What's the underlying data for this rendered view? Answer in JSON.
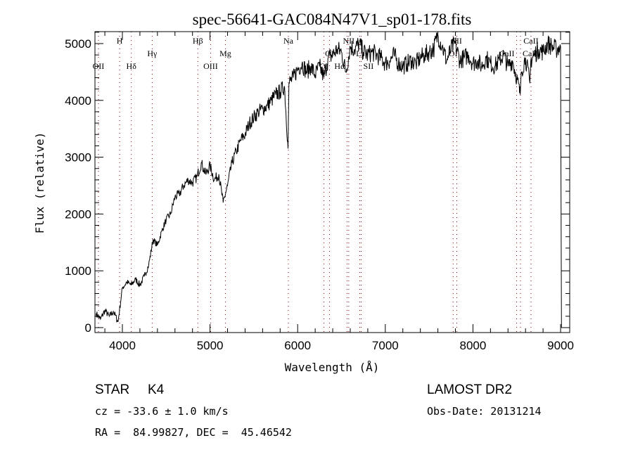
{
  "chart_data": {
    "type": "line",
    "title": "spec-56641-GAC084N47V1_sp01-178.fits",
    "xlabel": "Wavelength (Å)",
    "ylabel": "Flux (relative)",
    "xlim": [
      3687,
      9104
    ],
    "ylim": [
      -87,
      5210
    ],
    "xticks": [
      4000,
      5000,
      6000,
      7000,
      8000,
      9000
    ],
    "yticks": [
      0,
      1000,
      2000,
      3000,
      4000,
      5000
    ],
    "grid": false,
    "series": [
      {
        "name": "spectrum",
        "x": [
          3700,
          3750,
          3800,
          3850,
          3900,
          3950,
          4000,
          4050,
          4100,
          4150,
          4200,
          4250,
          4300,
          4350,
          4400,
          4450,
          4500,
          4550,
          4600,
          4650,
          4700,
          4750,
          4800,
          4850,
          4900,
          4950,
          5000,
          5050,
          5100,
          5150,
          5200,
          5250,
          5300,
          5350,
          5400,
          5450,
          5500,
          5550,
          5600,
          5650,
          5700,
          5750,
          5800,
          5850,
          5890,
          5900,
          5950,
          6000,
          6050,
          6100,
          6150,
          6200,
          6250,
          6300,
          6350,
          6400,
          6450,
          6500,
          6550,
          6600,
          6650,
          6700,
          6750,
          6800,
          6850,
          6900,
          6950,
          7000,
          7050,
          7100,
          7150,
          7200,
          7250,
          7300,
          7350,
          7400,
          7450,
          7500,
          7550,
          7600,
          7650,
          7700,
          7750,
          7800,
          7850,
          7900,
          7950,
          8000,
          8050,
          8100,
          8150,
          8200,
          8250,
          8300,
          8350,
          8400,
          8450,
          8500,
          8540,
          8550,
          8600,
          8650,
          8660,
          8700,
          8750,
          8800,
          8850,
          8900,
          8950,
          9000,
          9010
        ],
        "y": [
          250,
          150,
          300,
          200,
          280,
          100,
          700,
          800,
          750,
          850,
          750,
          900,
          1100,
          1550,
          1450,
          1700,
          1900,
          2000,
          2300,
          2350,
          2500,
          2600,
          2550,
          2650,
          2900,
          2700,
          2850,
          2600,
          2700,
          2200,
          2500,
          2900,
          3100,
          3300,
          3400,
          3600,
          3700,
          3800,
          3850,
          3900,
          4000,
          4100,
          4150,
          4250,
          3150,
          4300,
          4400,
          4550,
          4650,
          4500,
          4600,
          4450,
          4600,
          4400,
          4750,
          4800,
          4900,
          4850,
          4500,
          4950,
          4900,
          5000,
          4850,
          4800,
          4850,
          4800,
          4750,
          4650,
          4700,
          4800,
          4650,
          4600,
          4650,
          4700,
          4650,
          4750,
          4800,
          4850,
          4900,
          5150,
          4950,
          4700,
          4900,
          5000,
          4700,
          4750,
          4800,
          4650,
          4700,
          4600,
          4750,
          4650,
          4600,
          4700,
          4800,
          4600,
          4700,
          4400,
          4100,
          4500,
          4750,
          4300,
          4700,
          4800,
          4900,
          4850,
          5000,
          4950,
          4900,
          4950,
          0
        ]
      }
    ],
    "line_markers": [
      {
        "label": "OII",
        "wavelength": 3727,
        "row": 3
      },
      {
        "label": "H",
        "wavelength": 3969,
        "row": 1
      },
      {
        "label": "Hδ",
        "wavelength": 4102,
        "row": 3
      },
      {
        "label": "Hγ",
        "wavelength": 4340,
        "row": 2
      },
      {
        "label": "Hβ",
        "wavelength": 4861,
        "row": 1
      },
      {
        "label": "OIII",
        "wavelength": 5007,
        "row": 3
      },
      {
        "label": "Mg",
        "wavelength": 5175,
        "row": 2
      },
      {
        "label": "Na",
        "wavelength": 5894,
        "row": 1
      },
      {
        "label": "OI",
        "wavelength": 6300,
        "row": 3
      },
      {
        "label": "OI",
        "wavelength": 6363,
        "row": 2
      },
      {
        "label": "NII",
        "wavelength": 6583,
        "row": 1
      },
      {
        "label": "Hα",
        "wavelength": 6563,
        "row": 3
      },
      {
        "label": "Li",
        "wavelength": 6708,
        "row": 2
      },
      {
        "label": "SII",
        "wavelength": 6725,
        "row": 3
      },
      {
        "label": "OI",
        "wavelength": 7774,
        "row": 2
      },
      {
        "label": "SII",
        "wavelength": 7816,
        "row": 1
      },
      {
        "label": "CaII",
        "wavelength": 8498,
        "row": 2
      },
      {
        "label": "CaII",
        "wavelength": 8542,
        "row": 2
      },
      {
        "label": "CaII",
        "wavelength": 8662,
        "row": 1
      }
    ]
  },
  "info": {
    "class": "STAR",
    "subclass": "K4",
    "survey": "LAMOST DR2",
    "redshift": "cz = -33.6 ± 1.0 km/s",
    "obs_date": "Obs-Date: 20131214",
    "coords": "RA =  84.99827, DEC =  45.46542"
  }
}
